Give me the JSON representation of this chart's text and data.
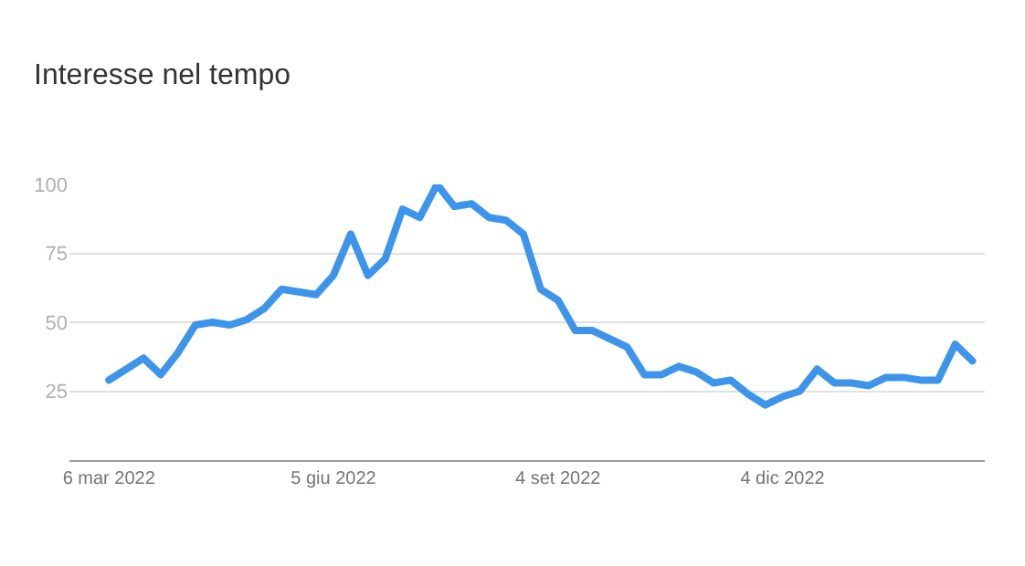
{
  "chart_data": {
    "type": "line",
    "title": "Interesse nel tempo",
    "x": [
      "2022-03-06",
      "2022-03-13",
      "2022-03-20",
      "2022-03-27",
      "2022-04-03",
      "2022-04-10",
      "2022-04-17",
      "2022-04-24",
      "2022-05-01",
      "2022-05-08",
      "2022-05-15",
      "2022-05-22",
      "2022-05-29",
      "2022-06-05",
      "2022-06-12",
      "2022-06-19",
      "2022-06-26",
      "2022-07-03",
      "2022-07-10",
      "2022-07-17",
      "2022-07-24",
      "2022-07-31",
      "2022-08-07",
      "2022-08-14",
      "2022-08-21",
      "2022-08-28",
      "2022-09-04",
      "2022-09-11",
      "2022-09-18",
      "2022-09-25",
      "2022-10-02",
      "2022-10-09",
      "2022-10-16",
      "2022-10-23",
      "2022-10-30",
      "2022-11-06",
      "2022-11-13",
      "2022-11-20",
      "2022-11-27",
      "2022-12-04",
      "2022-12-11",
      "2022-12-18",
      "2022-12-25",
      "2023-01-01",
      "2023-01-08",
      "2023-01-15",
      "2023-01-22",
      "2023-01-29",
      "2023-02-05",
      "2023-02-12",
      "2023-02-19"
    ],
    "series": [
      {
        "color": "#3d95eb",
        "values": [
          29,
          33,
          37,
          31,
          39,
          49,
          50,
          49,
          51,
          55,
          62,
          61,
          60,
          67,
          82,
          67,
          73,
          91,
          88,
          100,
          92,
          93,
          88,
          87,
          82,
          62,
          58,
          47,
          47,
          44,
          41,
          31,
          31,
          34,
          32,
          28,
          29,
          24,
          20,
          23,
          25,
          33,
          28,
          28,
          27,
          30,
          30,
          29,
          29,
          42,
          36
        ]
      }
    ],
    "xlim": [
      "2022-02-18",
      "2023-02-24"
    ],
    "xticks": [
      {
        "value": "2022-03-06",
        "label": "6 mar 2022"
      },
      {
        "value": "2022-06-05",
        "label": "5 giu 2022"
      },
      {
        "value": "2022-09-04",
        "label": "4 set 2022"
      },
      {
        "value": "2022-12-04",
        "label": "4 dic 2022"
      }
    ],
    "ylim": [
      0,
      100
    ],
    "yticks": [
      25,
      50,
      75,
      100
    ],
    "grid": "y",
    "marker": "none",
    "line_style": "solid"
  }
}
